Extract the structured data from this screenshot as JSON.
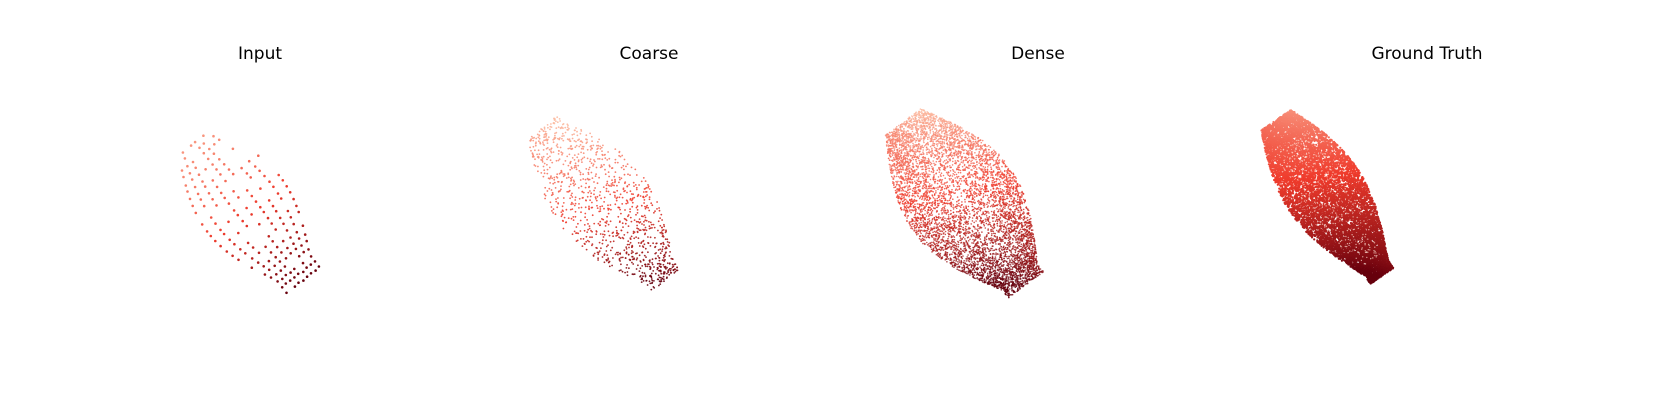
{
  "panels": [
    {
      "id": "input",
      "title": "Input",
      "style": "sparse-grid"
    },
    {
      "id": "coarse",
      "title": "Coarse",
      "style": "coarse"
    },
    {
      "id": "dense",
      "title": "Dense",
      "style": "dense"
    },
    {
      "id": "gt",
      "title": "Ground Truth",
      "style": "surface"
    }
  ],
  "colors": {
    "light": "#fcbba1",
    "mid": "#ef3b2c",
    "dark": "#67000d"
  }
}
